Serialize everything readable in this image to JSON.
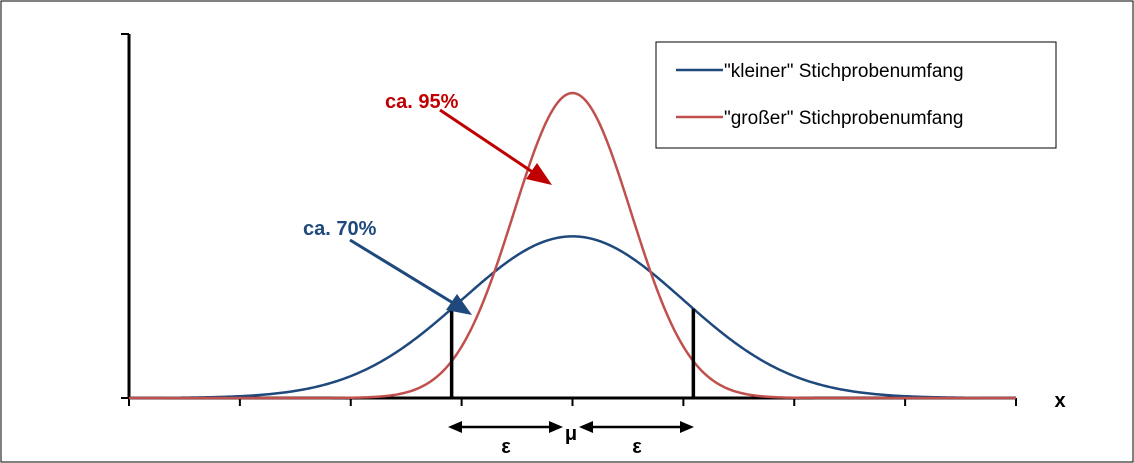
{
  "chart_data": {
    "type": "line",
    "title": "",
    "xlabel": "x",
    "ylabel": "",
    "x_range": [
      -4,
      4
    ],
    "tick_positions": [
      -4,
      -3,
      -2,
      -1,
      0,
      1,
      2,
      3,
      4
    ],
    "series": [
      {
        "name": "\"kleiner\" Stichprobenumfang",
        "color": "#1F497D",
        "sigma": 1.0,
        "relative_peak": 0.53
      },
      {
        "name": "\"großer\" Stichprobenumfang",
        "color": "#C0504D",
        "sigma": 0.53,
        "relative_peak": 1.0
      }
    ],
    "epsilon_bounds": [
      -1.09,
      1.09
    ],
    "annotations": {
      "small_share": "ca. 70%",
      "large_share": "ca. 95%",
      "mu_label": "μ",
      "epsilon_label": "ε"
    },
    "legend_position": "top-right",
    "grid": false
  },
  "colors": {
    "small_curve": "#1F497D",
    "large_curve": "#C0504D",
    "small_annotation": "#1F497D",
    "large_annotation": "#C00000",
    "axis": "#000000",
    "frame": "#000000"
  }
}
